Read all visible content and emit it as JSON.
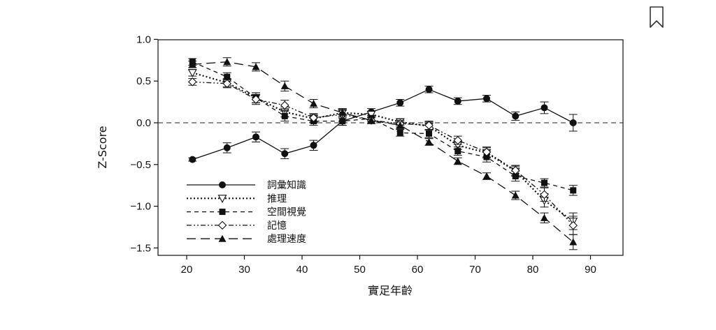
{
  "toolbar": {
    "bookmark_icon": "bookmark-icon"
  },
  "chart_data": {
    "type": "line",
    "title": "",
    "xlabel": "實足年齡",
    "ylabel": "Z-Score",
    "xlim": [
      15,
      95
    ],
    "ylim": [
      -1.6,
      1.0
    ],
    "xticks": [
      "20",
      "30",
      "40",
      "50",
      "60",
      "70",
      "80",
      "90"
    ],
    "yticks": [
      "1.0",
      "0.5",
      "0.0",
      "−0.5",
      "−1.0",
      "−1.5"
    ],
    "reference_line": {
      "y": 0.0,
      "style": "dashed"
    },
    "legend_position": "bottom-left",
    "x": [
      21,
      27,
      32,
      37,
      42,
      47,
      52,
      57,
      62,
      67,
      72,
      77,
      82,
      87
    ],
    "series": [
      {
        "name": "詞彙知識",
        "marker": "circle-filled",
        "line": "solid",
        "values": [
          -0.44,
          -0.3,
          -0.17,
          -0.37,
          -0.27,
          0.02,
          0.13,
          0.24,
          0.4,
          0.26,
          0.29,
          0.08,
          0.18,
          0.0
        ],
        "errors": [
          0.02,
          0.06,
          0.06,
          0.06,
          0.06,
          0.05,
          0.04,
          0.04,
          0.04,
          0.04,
          0.04,
          0.05,
          0.07,
          0.1
        ]
      },
      {
        "name": "推理",
        "marker": "triangle-down-open",
        "line": "dotted",
        "values": [
          0.6,
          0.48,
          0.3,
          0.13,
          0.05,
          0.12,
          0.1,
          0.01,
          -0.04,
          -0.27,
          -0.36,
          -0.58,
          -0.93,
          -1.18
        ],
        "errors": [
          0.04,
          0.05,
          0.06,
          0.06,
          0.05,
          0.05,
          0.04,
          0.04,
          0.05,
          0.05,
          0.06,
          0.06,
          0.08,
          0.1
        ]
      },
      {
        "name": "空間視覺",
        "marker": "square-filled",
        "line": "dashed",
        "values": [
          0.73,
          0.55,
          0.3,
          0.08,
          0.02,
          0.02,
          0.05,
          -0.12,
          -0.13,
          -0.34,
          -0.41,
          -0.64,
          -0.72,
          -0.81
        ],
        "errors": [
          0.04,
          0.05,
          0.06,
          0.06,
          0.05,
          0.05,
          0.04,
          0.04,
          0.05,
          0.05,
          0.06,
          0.06,
          0.05,
          0.06
        ]
      },
      {
        "name": "記憶",
        "marker": "diamond-open",
        "line": "dash-dot-dot",
        "values": [
          0.49,
          0.47,
          0.28,
          0.21,
          0.06,
          0.1,
          0.03,
          -0.01,
          -0.03,
          -0.21,
          -0.35,
          -0.57,
          -0.86,
          -1.23
        ],
        "errors": [
          0.04,
          0.05,
          0.06,
          0.06,
          0.05,
          0.05,
          0.04,
          0.04,
          0.05,
          0.05,
          0.06,
          0.06,
          0.08,
          0.11
        ]
      },
      {
        "name": "處理速度",
        "marker": "triangle-up-filled",
        "line": "long-dash",
        "values": [
          0.7,
          0.73,
          0.67,
          0.44,
          0.23,
          0.12,
          0.03,
          -0.03,
          -0.23,
          -0.46,
          -0.64,
          -0.87,
          -1.14,
          -1.43
        ],
        "errors": [
          0.04,
          0.05,
          0.05,
          0.06,
          0.05,
          0.05,
          0.04,
          0.04,
          0.04,
          0.04,
          0.04,
          0.05,
          0.06,
          0.09
        ]
      }
    ]
  }
}
